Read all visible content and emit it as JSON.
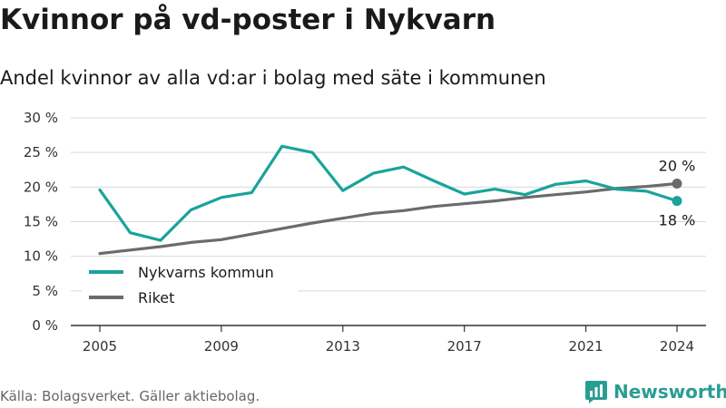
{
  "title": "Kvinnor på vd-poster i Nykvarn",
  "subtitle": "Andel kvinnor av alla vd:ar i bolag med säte i kommunen",
  "source": "Källa: Bolagsverket. Gäller aktiebolag.",
  "brand": "Newsworthy",
  "colors": {
    "nykvarn": "#1aa39b",
    "riket": "#6b6b6b",
    "grid": "#d9d9d9",
    "brand": "#2a9d92"
  },
  "chart_data": {
    "type": "line",
    "x": [
      2005,
      2006,
      2007,
      2008,
      2009,
      2010,
      2011,
      2012,
      2013,
      2014,
      2015,
      2016,
      2017,
      2018,
      2019,
      2020,
      2021,
      2022,
      2023,
      2024
    ],
    "series": [
      {
        "name": "Nykvarns kommun",
        "color": "#1aa39b",
        "values": [
          19.6,
          13.4,
          12.3,
          16.7,
          18.5,
          19.2,
          25.9,
          25.0,
          19.5,
          22.0,
          22.9,
          20.9,
          19.0,
          19.7,
          18.9,
          20.4,
          20.9,
          19.7,
          19.4,
          18.0
        ],
        "end_label": "18 %"
      },
      {
        "name": "Riket",
        "color": "#6b6b6b",
        "values": [
          10.4,
          10.9,
          11.4,
          12.0,
          12.4,
          13.2,
          14.0,
          14.8,
          15.5,
          16.2,
          16.6,
          17.2,
          17.6,
          18.0,
          18.5,
          18.9,
          19.3,
          19.8,
          20.1,
          20.5
        ],
        "end_label": "20 %"
      }
    ],
    "x_ticks": [
      2005,
      2009,
      2013,
      2017,
      2021,
      2024
    ],
    "y_ticks": [
      0,
      5,
      10,
      15,
      20,
      25,
      30
    ],
    "y_tick_labels": [
      "0 %",
      "5 %",
      "10 %",
      "15 %",
      "20 %",
      "25 %",
      "30 %"
    ],
    "ylim": [
      0,
      30
    ],
    "xlim": [
      2005,
      2024
    ],
    "grid": true,
    "legend_position": "bottom-left"
  }
}
